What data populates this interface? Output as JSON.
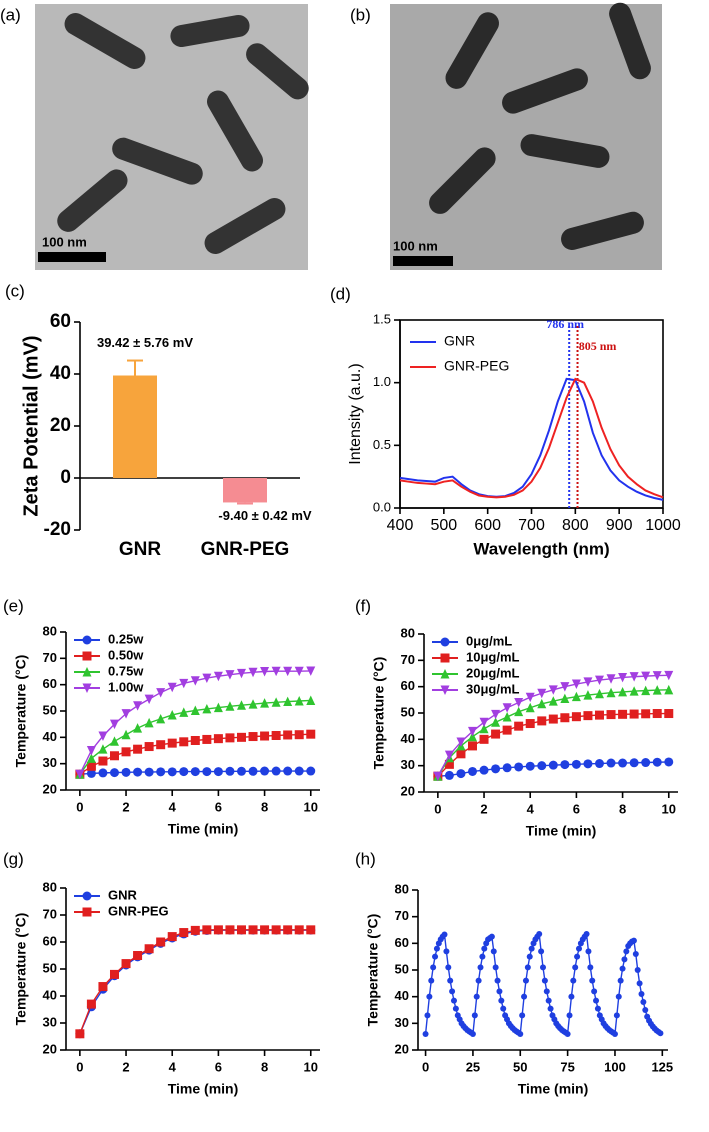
{
  "images": [
    {
      "label": "(a)",
      "scale_bar": "100 nm"
    },
    {
      "label": "(b)",
      "scale_bar": "100 nm"
    }
  ],
  "chart_data": [
    {
      "type": "bar",
      "label": "(c)",
      "ylabel": "Zeta Potential (mV)",
      "categories": [
        "GNR",
        "GNR-PEG"
      ],
      "values": [
        39.42,
        -9.4
      ],
      "errors": [
        5.76,
        0.42
      ],
      "value_labels": [
        "39.42 ± 5.76 mV",
        "-9.40 ± 0.42 mV"
      ],
      "colors": [
        "#f7a43c",
        "#f58c92"
      ],
      "ylim": [
        -20,
        60
      ],
      "yticks": [
        -20,
        0,
        20,
        40,
        60
      ]
    },
    {
      "type": "line",
      "label": "(d)",
      "xlabel": "Wavelength (nm)",
      "ylabel": "Intensity (a.u.)",
      "frame": true,
      "legend": "top-left",
      "x": [
        400,
        420,
        440,
        460,
        480,
        500,
        520,
        540,
        560,
        580,
        600,
        620,
        640,
        660,
        680,
        700,
        720,
        740,
        760,
        780,
        800,
        820,
        840,
        860,
        880,
        900,
        920,
        940,
        960,
        980,
        1000
      ],
      "series": [
        {
          "name": "GNR",
          "color": "#2233ee",
          "values": [
            0.24,
            0.23,
            0.22,
            0.215,
            0.21,
            0.24,
            0.25,
            0.19,
            0.14,
            0.11,
            0.095,
            0.09,
            0.095,
            0.12,
            0.17,
            0.27,
            0.42,
            0.62,
            0.85,
            1.03,
            1.02,
            0.85,
            0.6,
            0.42,
            0.3,
            0.22,
            0.17,
            0.13,
            0.1,
            0.08,
            0.065
          ]
        },
        {
          "name": "GNR-PEG",
          "color": "#ee2222",
          "values": [
            0.22,
            0.21,
            0.2,
            0.195,
            0.19,
            0.21,
            0.22,
            0.17,
            0.13,
            0.1,
            0.09,
            0.085,
            0.09,
            0.105,
            0.14,
            0.21,
            0.32,
            0.48,
            0.68,
            0.88,
            1.03,
            1.0,
            0.85,
            0.64,
            0.47,
            0.34,
            0.25,
            0.19,
            0.14,
            0.11,
            0.085
          ]
        }
      ],
      "vlines": [
        {
          "x": 786,
          "label": "786 nm",
          "color": "#2233ee"
        },
        {
          "x": 805,
          "label": "805 nm",
          "color": "#cc1111"
        }
      ],
      "xlim": [
        400,
        1000
      ],
      "xticks": [
        400,
        500,
        600,
        700,
        800,
        900,
        1000
      ],
      "ylim": [
        0,
        1.5
      ],
      "yticks": [
        {
          "value": 0,
          "label": "0.0"
        },
        {
          "value": 0.5,
          "label": "0.5"
        },
        {
          "value": 1,
          "label": "1.0"
        },
        {
          "value": 1.5,
          "label": "1.5"
        }
      ]
    },
    {
      "type": "line",
      "label": "(e)",
      "xlabel": "Time (min)",
      "ylabel": "Temperature (°C)",
      "legend": "top-left",
      "x": [
        0,
        0.5,
        1,
        1.5,
        2,
        2.5,
        3,
        3.5,
        4,
        4.5,
        5,
        5.5,
        6,
        6.5,
        7,
        7.5,
        8,
        8.5,
        9,
        9.5,
        10
      ],
      "series": [
        {
          "name": "0.25w",
          "color": "#1f3fe0",
          "marker": "circle",
          "values": [
            26,
            26.3,
            26.5,
            26.6,
            26.7,
            26.8,
            26.8,
            26.9,
            26.9,
            27,
            27,
            27,
            27,
            27.1,
            27.1,
            27.1,
            27.2,
            27.2,
            27.2,
            27.2,
            27.2
          ]
        },
        {
          "name": "0.50w",
          "color": "#e01f1f",
          "marker": "square",
          "values": [
            26,
            29,
            31,
            33,
            34.5,
            35.5,
            36.5,
            37.2,
            37.8,
            38.3,
            38.8,
            39.2,
            39.5,
            39.8,
            40,
            40.3,
            40.5,
            40.7,
            40.9,
            41,
            41.2
          ]
        },
        {
          "name": "0.75w",
          "color": "#2fc42f",
          "marker": "triangle-up",
          "values": [
            26,
            32,
            35.5,
            38.5,
            41,
            43.5,
            45.5,
            47,
            48.5,
            49.5,
            50.2,
            50.8,
            51.3,
            51.8,
            52.2,
            52.6,
            53,
            53.3,
            53.6,
            53.8,
            54
          ]
        },
        {
          "name": "1.00w",
          "color": "#a23ee0",
          "marker": "triangle-down",
          "values": [
            26,
            35,
            40.5,
            45,
            49,
            52,
            54.5,
            57,
            59,
            60.5,
            61.5,
            62.5,
            63.2,
            63.8,
            64.3,
            64.7,
            65,
            65.1,
            65.1,
            65.1,
            65.2
          ]
        }
      ],
      "xlim": [
        -0.6,
        10.4
      ],
      "xticks": [
        0,
        2,
        4,
        6,
        8,
        10
      ],
      "ylim": [
        20,
        80
      ],
      "yticks": [
        20,
        30,
        40,
        50,
        60,
        70,
        80
      ]
    },
    {
      "type": "line",
      "label": "(f)",
      "xlabel": "Time (min)",
      "ylabel": "Temperature (°C)",
      "legend": "top-left",
      "x": [
        0,
        0.5,
        1,
        1.5,
        2,
        2.5,
        3,
        3.5,
        4,
        4.5,
        5,
        5.5,
        6,
        6.5,
        7,
        7.5,
        8,
        8.5,
        9,
        9.5,
        10
      ],
      "series": [
        {
          "name": "0μg/mL",
          "color": "#1f3fe0",
          "marker": "circle",
          "values": [
            26,
            26.3,
            27,
            27.8,
            28.3,
            28.8,
            29.2,
            29.5,
            29.8,
            30,
            30.2,
            30.4,
            30.5,
            30.7,
            30.8,
            31,
            31,
            31.1,
            31.2,
            31.3,
            31.4
          ]
        },
        {
          "name": "10μg/mL",
          "color": "#e01f1f",
          "marker": "square",
          "values": [
            26,
            30.5,
            34.5,
            37.5,
            40,
            42,
            43.5,
            45,
            46,
            47,
            47.7,
            48.2,
            48.6,
            49,
            49.2,
            49.4,
            49.5,
            49.6,
            49.7,
            49.8,
            49.8
          ]
        },
        {
          "name": "20μg/mL",
          "color": "#2fc42f",
          "marker": "triangle-up",
          "values": [
            26,
            33,
            37.5,
            41,
            44,
            46.5,
            48.5,
            50.5,
            52,
            53.5,
            54.5,
            55.5,
            56.2,
            56.8,
            57.3,
            57.7,
            58,
            58.3,
            58.5,
            58.7,
            58.8
          ]
        },
        {
          "name": "30μg/mL",
          "color": "#a23ee0",
          "marker": "triangle-down",
          "values": [
            26,
            34,
            39,
            43,
            46.5,
            49.5,
            52,
            54,
            56,
            57.5,
            58.8,
            60,
            61,
            61.8,
            62.5,
            63,
            63.5,
            63.8,
            64,
            64.2,
            64.3
          ]
        }
      ],
      "xlim": [
        -0.6,
        10.4
      ],
      "xticks": [
        0,
        2,
        4,
        6,
        8,
        10
      ],
      "ylim": [
        20,
        80
      ],
      "yticks": [
        20,
        30,
        40,
        50,
        60,
        70,
        80
      ]
    },
    {
      "type": "line",
      "label": "(g)",
      "xlabel": "Time (min)",
      "ylabel": "Temperature (°C)",
      "legend": "top-left",
      "x": [
        0,
        0.5,
        1,
        1.5,
        2,
        2.5,
        3,
        3.5,
        4,
        4.5,
        5,
        5.5,
        6,
        6.5,
        7,
        7.5,
        8,
        8.5,
        9,
        9.5,
        10
      ],
      "series": [
        {
          "name": "GNR",
          "color": "#1f3fe0",
          "marker": "circle",
          "values": [
            26,
            36,
            42.5,
            47.5,
            51.5,
            54.5,
            57,
            59.5,
            61.5,
            63,
            64,
            64.3,
            64.4,
            64.4,
            64.4,
            64.4,
            64.4,
            64.4,
            64.4,
            64.4,
            64.4
          ]
        },
        {
          "name": "GNR-PEG",
          "color": "#e01f1f",
          "marker": "square",
          "values": [
            26,
            37,
            43.5,
            48,
            52,
            55,
            57.5,
            60,
            62,
            63.5,
            64.3,
            64.5,
            64.5,
            64.5,
            64.5,
            64.5,
            64.5,
            64.5,
            64.5,
            64.5,
            64.5
          ]
        }
      ],
      "xlim": [
        -0.6,
        10.4
      ],
      "xticks": [
        0,
        2,
        4,
        6,
        8,
        10
      ],
      "ylim": [
        20,
        80
      ],
      "yticks": [
        20,
        30,
        40,
        50,
        60,
        70,
        80
      ]
    },
    {
      "type": "line",
      "label": "(h)",
      "xlabel": "Time (min)",
      "ylabel": "Temperature (°C)",
      "x": [
        0,
        1,
        2,
        3,
        4,
        5,
        6,
        7,
        8,
        9,
        10,
        11,
        12,
        13,
        14,
        15,
        16,
        17,
        18,
        19,
        20,
        21,
        22,
        23,
        24,
        25,
        26,
        27,
        28,
        29,
        30,
        31,
        32,
        33,
        34,
        35,
        36,
        37,
        38,
        39,
        40,
        41,
        42,
        43,
        44,
        45,
        46,
        47,
        48,
        49,
        50,
        51,
        52,
        53,
        54,
        55,
        56,
        57,
        58,
        59,
        60,
        61,
        62,
        63,
        64,
        65,
        66,
        67,
        68,
        69,
        70,
        71,
        72,
        73,
        74,
        75,
        76,
        77,
        78,
        79,
        80,
        81,
        82,
        83,
        84,
        85,
        86,
        87,
        88,
        89,
        90,
        91,
        92,
        93,
        94,
        95,
        96,
        97,
        98,
        99,
        100,
        101,
        102,
        103,
        104,
        105,
        106,
        107,
        108,
        109,
        110,
        111,
        112,
        113,
        114,
        115,
        116,
        117,
        118,
        119,
        120,
        121,
        122,
        123,
        124
      ],
      "series": [
        {
          "color": "#1f3fe0",
          "marker": "circle",
          "small": true,
          "values": [
            26,
            33,
            40,
            46,
            51,
            55,
            58,
            60,
            61.5,
            62.5,
            63.3,
            57,
            51,
            46,
            42,
            38.5,
            35.5,
            33,
            31.5,
            30,
            29,
            28.2,
            27.5,
            27,
            26.5,
            26,
            33,
            40,
            46,
            51,
            55,
            58,
            60,
            61.5,
            62,
            62.5,
            57,
            51,
            46,
            42,
            38.5,
            35.5,
            33,
            31.5,
            30,
            29,
            28.2,
            27.5,
            27,
            26.5,
            26,
            33,
            40,
            46,
            51,
            55,
            58,
            60,
            61.5,
            62.5,
            63.5,
            57,
            51,
            46,
            42,
            38.5,
            35.5,
            33,
            31.5,
            30,
            29,
            28.2,
            27.5,
            27,
            26.5,
            26,
            33,
            40,
            46,
            51,
            55,
            58,
            60,
            61.5,
            62.5,
            63.5,
            57,
            51,
            46,
            42,
            38.5,
            35.5,
            33,
            31.5,
            30,
            29,
            28.2,
            27.5,
            27,
            26.5,
            26,
            33,
            40,
            46,
            50.5,
            54,
            57,
            59,
            60,
            60.7,
            61,
            56,
            50,
            45,
            41,
            38,
            35,
            32.5,
            31,
            29.8,
            28.8,
            28,
            27.3,
            26.8,
            26.3
          ]
        }
      ],
      "xlim": [
        -4,
        128
      ],
      "xticks": [
        0,
        25,
        50,
        75,
        100,
        125
      ],
      "ylim": [
        20,
        80
      ],
      "yticks": [
        20,
        30,
        40,
        50,
        60,
        70,
        80
      ]
    }
  ]
}
